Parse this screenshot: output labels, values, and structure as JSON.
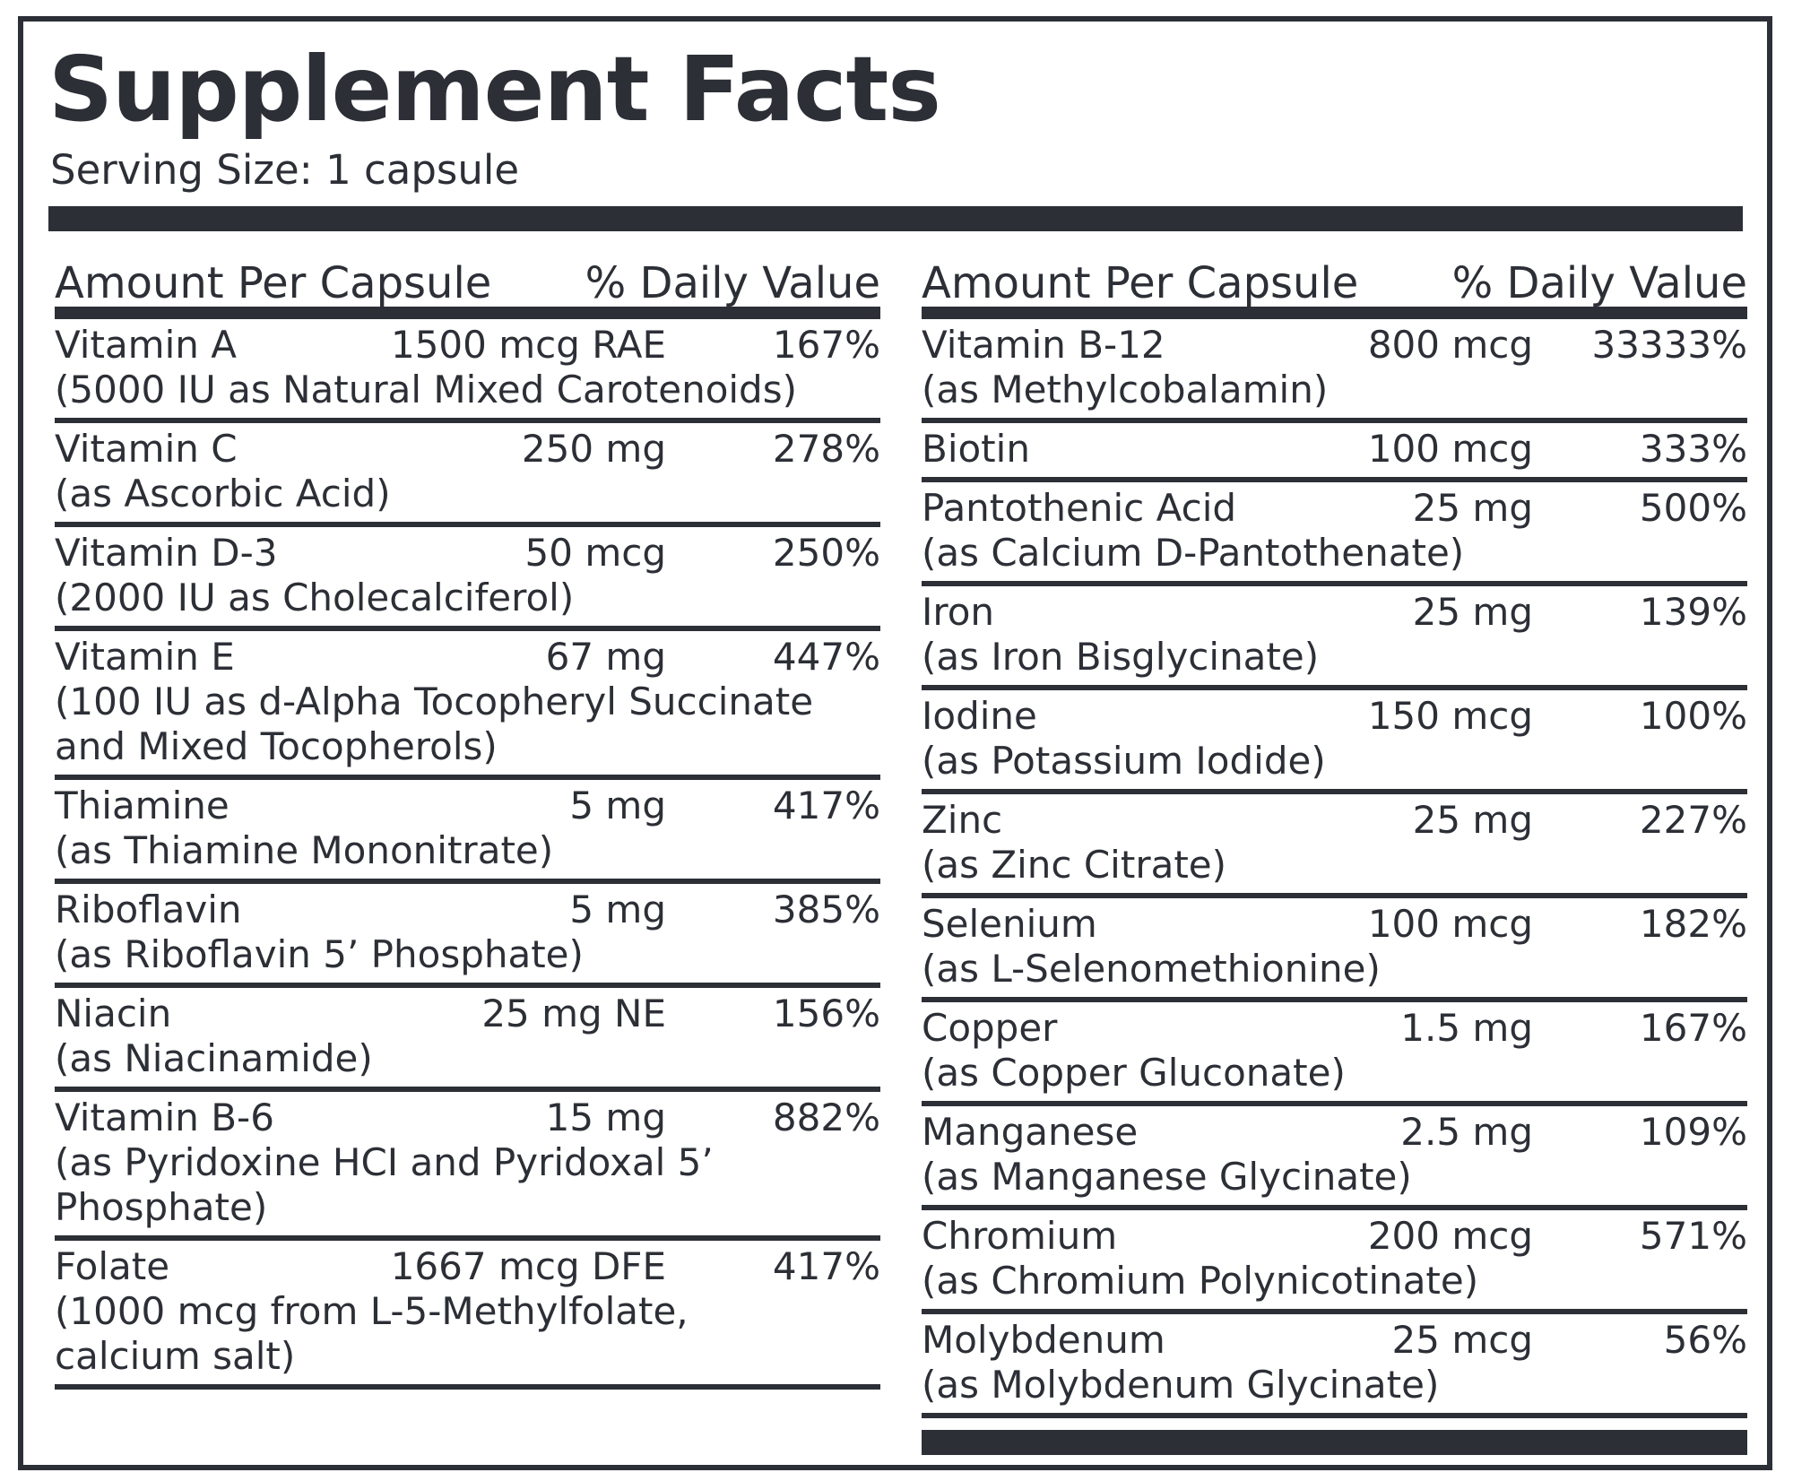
{
  "title": "Supplement Facts",
  "serving_size": "Serving Size: 1 capsule",
  "header": {
    "amount": "Amount Per Capsule",
    "dv": "% Daily Value"
  },
  "left": [
    {
      "name": "Vitamin A",
      "amount": "1500 mcg RAE",
      "dv": "167%",
      "detail": "(5000 IU as Natural Mixed Carotenoids)"
    },
    {
      "name": "Vitamin C",
      "amount": "250 mg",
      "dv": "278%",
      "detail": "(as Ascorbic Acid)"
    },
    {
      "name": "Vitamin D-3",
      "amount": "50 mcg",
      "dv": "250%",
      "detail": "(2000 IU as Cholecalciferol)"
    },
    {
      "name": "Vitamin E",
      "amount": "67 mg",
      "dv": "447%",
      "detail": "(100 IU as d-Alpha Tocopheryl Succinate\nand Mixed Tocopherols)"
    },
    {
      "name": "Thiamine",
      "amount": "5 mg",
      "dv": "417%",
      "detail": "(as Thiamine Mononitrate)"
    },
    {
      "name": "Riboflavin",
      "amount": "5 mg",
      "dv": "385%",
      "detail": "(as Riboflavin 5’ Phosphate)"
    },
    {
      "name": "Niacin",
      "amount": "25 mg NE",
      "dv": "156%",
      "detail": "(as Niacinamide)"
    },
    {
      "name": "Vitamin B-6",
      "amount": "15 mg",
      "dv": "882%",
      "detail": "(as Pyridoxine HCI and Pyridoxal 5’\nPhosphate)"
    },
    {
      "name": "Folate",
      "amount": "1667 mcg DFE",
      "dv": "417%",
      "detail": "(1000 mcg from L-5-Methylfolate,\ncalcium salt)"
    }
  ],
  "right": [
    {
      "name": "Vitamin B-12",
      "amount": "800 mcg",
      "dv": "33333%",
      "detail": "(as Methylcobalamin)"
    },
    {
      "name": "Biotin",
      "amount": "100 mcg",
      "dv": "333%",
      "detail": ""
    },
    {
      "name": "Pantothenic Acid",
      "amount": "25 mg",
      "dv": "500%",
      "detail": "(as Calcium D-Pantothenate)"
    },
    {
      "name": "Iron",
      "amount": "25 mg",
      "dv": "139%",
      "detail": "(as Iron Bisglycinate)"
    },
    {
      "name": "Iodine",
      "amount": "150 mcg",
      "dv": "100%",
      "detail": "(as Potassium Iodide)"
    },
    {
      "name": "Zinc",
      "amount": "25 mg",
      "dv": "227%",
      "detail": "(as Zinc Citrate)"
    },
    {
      "name": "Selenium",
      "amount": "100 mcg",
      "dv": "182%",
      "detail": "(as L-Selenomethionine)"
    },
    {
      "name": "Copper",
      "amount": "1.5 mg",
      "dv": "167%",
      "detail": "(as Copper Gluconate)"
    },
    {
      "name": "Manganese",
      "amount": "2.5 mg",
      "dv": "109%",
      "detail": "(as Manganese Glycinate)"
    },
    {
      "name": "Chromium",
      "amount": "200 mcg",
      "dv": "571%",
      "detail": "(as Chromium Polynicotinate)"
    },
    {
      "name": "Molybdenum",
      "amount": "25 mcg",
      "dv": "56%",
      "detail": "(as Molybdenum Glycinate)"
    }
  ]
}
